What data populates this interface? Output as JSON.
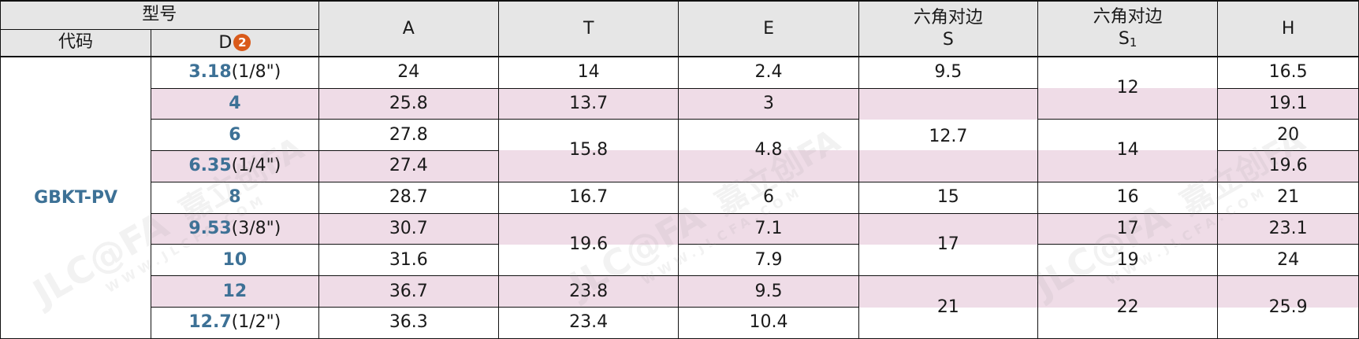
{
  "header": {
    "model_group": "型号",
    "code": "代码",
    "d_label": "D",
    "d_badge": "2",
    "a": "A",
    "t": "T",
    "e": "E",
    "s_line1": "六角对边",
    "s_line2": "S",
    "s1_line1": "六角对边",
    "s1_line2": "S",
    "s1_sub": "1",
    "h": "H"
  },
  "code_value": "GBKT-PV",
  "rows": [
    {
      "d": "3.18",
      "d_note": "(1/8\")",
      "a": "24",
      "t": "14",
      "e": "2.4",
      "h": "16.5"
    },
    {
      "d": "4",
      "d_note": "",
      "a": "25.8",
      "t": "13.7",
      "e": "3",
      "h": "19.1"
    },
    {
      "d": "6",
      "d_note": "",
      "a": "27.8",
      "h": "20"
    },
    {
      "d": "6.35",
      "d_note": "(1/4\")",
      "a": "27.4",
      "h": "19.6"
    },
    {
      "d": "8",
      "d_note": "",
      "a": "28.7",
      "t": "16.7",
      "e": "6",
      "h": "21"
    },
    {
      "d": "9.53",
      "d_note": "(3/8\")",
      "a": "30.7",
      "e": "7.1",
      "h": "23.1"
    },
    {
      "d": "10",
      "d_note": "",
      "a": "31.6",
      "e": "7.9",
      "h": "24"
    },
    {
      "d": "12",
      "d_note": "",
      "a": "36.7",
      "t": "23.8",
      "e": "9.5"
    },
    {
      "d": "12.7",
      "d_note": "(1/2\")",
      "a": "36.3",
      "t": "23.4",
      "e": "10.4"
    }
  ],
  "merged": {
    "t_rows_3_4": "15.8",
    "t_rows_6_7": "19.6",
    "e_rows_3_4": "4.8",
    "s_row_1": "9.5",
    "s_rows_3_4": "12.7",
    "s_row_5": "15",
    "s_rows_6_7": "17",
    "s_rows_8_9": "21",
    "s1_rows_1_2": "12",
    "s1_rows_3_4": "14",
    "s1_row_5": "16",
    "s1_row_6": "17",
    "s1_row_7": "19",
    "s1_rows_8_9": "22",
    "h_rows_8_9": "25.9"
  },
  "watermark": {
    "brand_cn": "嘉立创FA",
    "brand_en": "JLC@FA",
    "site": "WWW.JLCFA.COM"
  }
}
